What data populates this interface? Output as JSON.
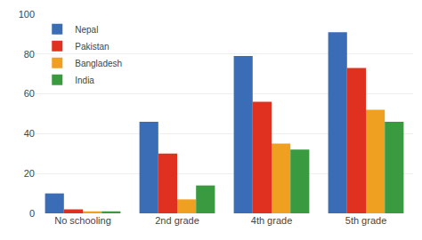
{
  "chart_data": {
    "type": "bar",
    "categories": [
      "No schooling",
      "2nd grade",
      "4th grade",
      "5th grade"
    ],
    "series": [
      {
        "name": "Nepal",
        "color": "#3a6db5",
        "values": [
          10,
          46,
          79,
          91
        ]
      },
      {
        "name": "Pakistan",
        "color": "#e03020",
        "values": [
          2,
          30,
          56,
          73
        ]
      },
      {
        "name": "Bangladesh",
        "color": "#f0a020",
        "values": [
          1,
          7,
          35,
          52
        ]
      },
      {
        "name": "India",
        "color": "#3a9a40",
        "values": [
          1,
          14,
          32,
          46
        ]
      }
    ],
    "ylim": [
      0,
      100
    ],
    "yticks": [
      0,
      20,
      40,
      60,
      80,
      100
    ],
    "grid": true,
    "legend": "upper left"
  }
}
